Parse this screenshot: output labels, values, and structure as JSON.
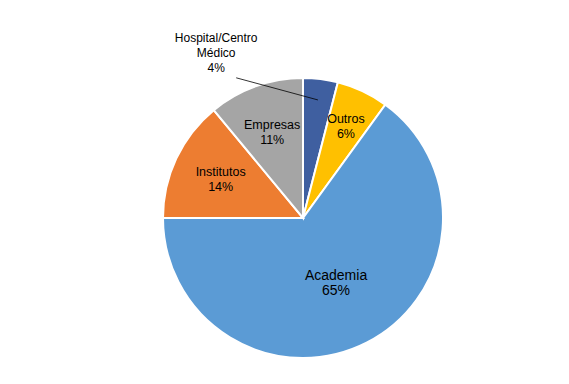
{
  "chart_data": {
    "type": "pie",
    "categories": [
      "Hospital/Centro\nMédico",
      "Outros",
      "Academia",
      "Institutos",
      "Empresas"
    ],
    "values": [
      4,
      6,
      65,
      14,
      11
    ],
    "value_labels": [
      "4%",
      "6%",
      "65%",
      "14%",
      "11%"
    ],
    "colors": [
      "#3F5FA0",
      "#FFC000",
      "#5B9BD5",
      "#ED7D31",
      "#A5A5A5"
    ],
    "data_labels": true
  }
}
